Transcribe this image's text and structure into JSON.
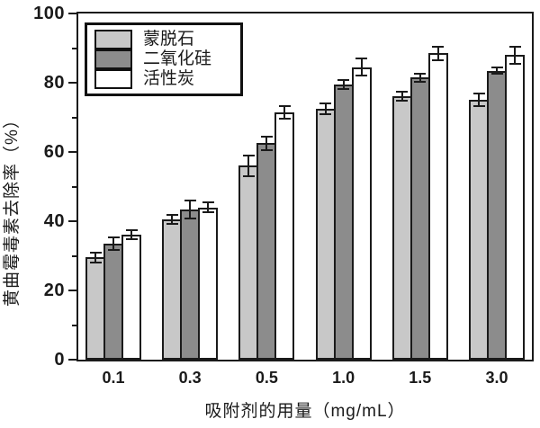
{
  "chart_data": {
    "type": "bar",
    "title": "",
    "xlabel": "吸附剂的用量（mg/mL）",
    "ylabel": "黄曲霉毒素去除率（%）",
    "categories": [
      "0.1",
      "0.3",
      "0.5",
      "1.0",
      "1.5",
      "3.0"
    ],
    "series": [
      {
        "name": "蒙脱石",
        "color": "#c8c8c8",
        "values": [
          29.5,
          40.5,
          56,
          72.5,
          76,
          75
        ],
        "errors": [
          1.5,
          1.4,
          3,
          1.5,
          1.3,
          1.8
        ]
      },
      {
        "name": "二氧化硅",
        "color": "#8c8c8c",
        "values": [
          33.5,
          43.5,
          62.5,
          79.5,
          81.5,
          83.5
        ],
        "errors": [
          1.7,
          2.6,
          2,
          1.4,
          1.2,
          0.9
        ]
      },
      {
        "name": "活性炭",
        "color": "#ffffff",
        "values": [
          36,
          44,
          71.5,
          84.5,
          88.5,
          88
        ],
        "errors": [
          1.3,
          1.5,
          1.8,
          2.4,
          1.9,
          2.5
        ]
      }
    ],
    "ylim": [
      0,
      100
    ],
    "yticks": [
      0,
      20,
      40,
      60,
      80,
      100
    ],
    "minor_yticks": [
      10,
      30,
      50,
      70,
      90
    ],
    "legend_position": "top-left",
    "grid": false,
    "axis_color": "#1a1a1a",
    "bar_outline": "#1a1a1a"
  }
}
